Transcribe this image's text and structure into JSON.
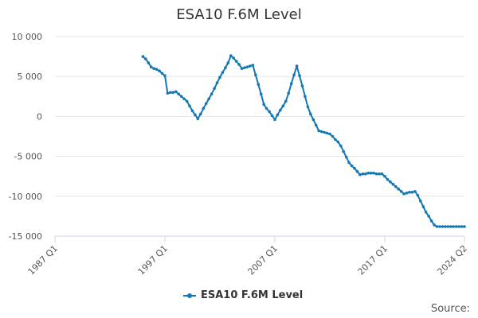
{
  "chart_data": {
    "type": "line",
    "title": "ESA10 F.6M Level",
    "xlabel": "",
    "ylabel": "",
    "x_range": [
      "1987 Q1",
      "2024 Q2"
    ],
    "x_ticks": [
      "1987 Q1",
      "1997 Q1",
      "2007 Q1",
      "2017 Q1",
      "2024 Q2"
    ],
    "ylim": [
      -15000,
      10000
    ],
    "y_ticks": [
      10000,
      5000,
      0,
      -5000,
      -10000,
      -15000
    ],
    "y_tick_labels": [
      "10 000",
      "5 000",
      "0",
      "-5 000",
      "-10 000",
      "-15 000"
    ],
    "grid": true,
    "legend_position": "bottom-center",
    "series": [
      {
        "name": "ESA10 F.6M Level",
        "color": "#1478b4",
        "x": [
          "1995 Q1",
          "1995 Q2",
          "1995 Q3",
          "1995 Q4",
          "1996 Q1",
          "1996 Q2",
          "1996 Q3",
          "1996 Q4",
          "1997 Q1",
          "1997 Q2",
          "1997 Q3",
          "1997 Q4",
          "1998 Q1",
          "1998 Q2",
          "1998 Q3",
          "1998 Q4",
          "1999 Q1",
          "1999 Q2",
          "1999 Q3",
          "1999 Q4",
          "2000 Q1",
          "2000 Q2",
          "2000 Q3",
          "2000 Q4",
          "2001 Q1",
          "2001 Q2",
          "2001 Q3",
          "2001 Q4",
          "2002 Q1",
          "2002 Q2",
          "2002 Q3",
          "2002 Q4",
          "2003 Q1",
          "2003 Q2",
          "2003 Q3",
          "2003 Q4",
          "2004 Q1",
          "2004 Q2",
          "2004 Q3",
          "2004 Q4",
          "2005 Q1",
          "2005 Q2",
          "2005 Q3",
          "2005 Q4",
          "2006 Q1",
          "2006 Q2",
          "2006 Q3",
          "2006 Q4",
          "2007 Q1",
          "2007 Q2",
          "2007 Q3",
          "2007 Q4",
          "2008 Q1",
          "2008 Q2",
          "2008 Q3",
          "2008 Q4",
          "2009 Q1",
          "2009 Q2",
          "2009 Q3",
          "2009 Q4",
          "2010 Q1",
          "2010 Q2",
          "2010 Q3",
          "2010 Q4",
          "2011 Q1",
          "2011 Q2",
          "2011 Q3",
          "2011 Q4",
          "2012 Q1",
          "2012 Q2",
          "2012 Q3",
          "2012 Q4",
          "2013 Q1",
          "2013 Q2",
          "2013 Q3",
          "2013 Q4",
          "2014 Q1",
          "2014 Q2",
          "2014 Q3",
          "2014 Q4",
          "2015 Q1",
          "2015 Q2",
          "2015 Q3",
          "2015 Q4",
          "2016 Q1",
          "2016 Q2",
          "2016 Q3",
          "2016 Q4",
          "2017 Q1",
          "2017 Q2",
          "2017 Q3",
          "2017 Q4",
          "2018 Q1",
          "2018 Q2",
          "2018 Q3",
          "2018 Q4",
          "2019 Q1",
          "2019 Q2",
          "2019 Q3",
          "2019 Q4",
          "2020 Q1",
          "2020 Q2",
          "2020 Q3",
          "2020 Q4",
          "2021 Q1",
          "2021 Q2",
          "2021 Q3",
          "2021 Q4",
          "2022 Q1",
          "2022 Q2",
          "2022 Q3",
          "2022 Q4",
          "2023 Q1",
          "2023 Q2",
          "2023 Q3",
          "2023 Q4",
          "2024 Q1",
          "2024 Q2"
        ],
        "values": [
          7500,
          7200,
          6700,
          6200,
          6000,
          5900,
          5700,
          5400,
          5100,
          2900,
          3000,
          3000,
          3100,
          2800,
          2500,
          2200,
          1900,
          1300,
          700,
          200,
          -300,
          300,
          1000,
          1600,
          2200,
          2800,
          3500,
          4200,
          4900,
          5500,
          6100,
          6700,
          7600,
          7300,
          6900,
          6500,
          6000,
          6100,
          6200,
          6300,
          6400,
          5200,
          4000,
          2800,
          1500,
          1000,
          600,
          100,
          -400,
          200,
          800,
          1300,
          1900,
          2900,
          4100,
          5200,
          6300,
          5100,
          3800,
          2500,
          1200,
          300,
          -400,
          -1100,
          -1800,
          -1900,
          -2000,
          -2100,
          -2200,
          -2500,
          -2900,
          -3200,
          -3700,
          -4400,
          -5100,
          -5800,
          -6200,
          -6500,
          -6900,
          -7300,
          -7200,
          -7200,
          -7100,
          -7100,
          -7100,
          -7200,
          -7200,
          -7200,
          -7500,
          -7900,
          -8200,
          -8500,
          -8800,
          -9100,
          -9400,
          -9700,
          -9600,
          -9500,
          -9500,
          -9400,
          -9900,
          -10600,
          -11300,
          -12000,
          -12500,
          -13100,
          -13600,
          -13800,
          -13800,
          -13800,
          -13800,
          -13800,
          -13800,
          -13800,
          -13800,
          -13800,
          -13800,
          -13800
        ]
      }
    ]
  },
  "footer": {
    "source_label": "Source:"
  }
}
